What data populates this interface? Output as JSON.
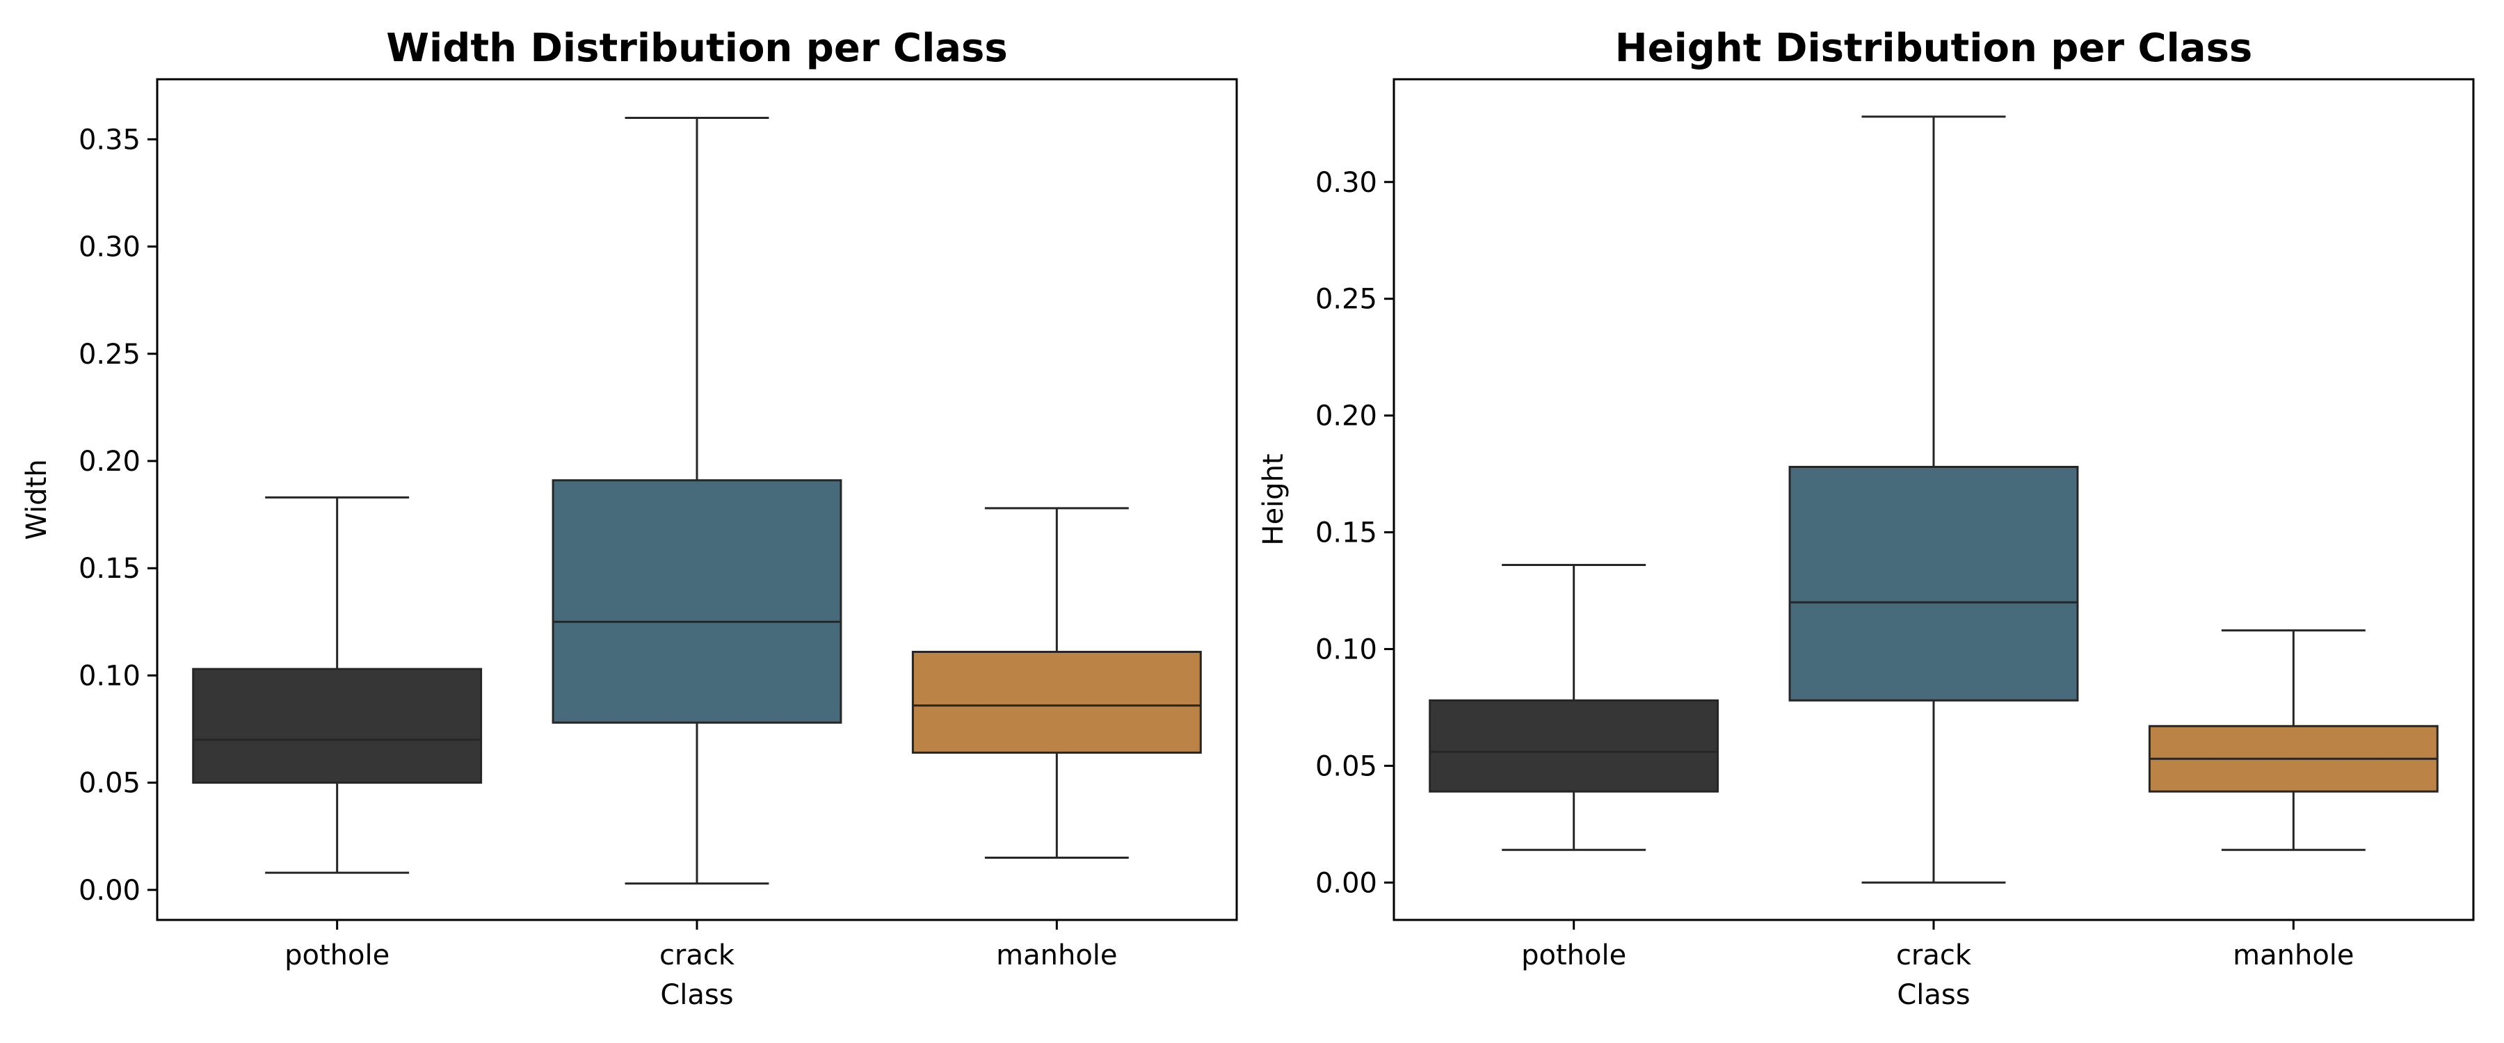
{
  "chart_data": [
    {
      "type": "box",
      "title": "Width Distribution per Class",
      "xlabel": "Class",
      "ylabel": "Width",
      "ylim": [
        -0.014,
        0.378
      ],
      "yticks": [
        "0.00",
        "0.05",
        "0.10",
        "0.15",
        "0.20",
        "0.25",
        "0.30",
        "0.35"
      ],
      "categories": [
        "pothole",
        "crack",
        "manhole"
      ],
      "colors": [
        "#363636",
        "#486b7c",
        "#bb8446"
      ],
      "boxes": [
        {
          "whisker_low": 0.008,
          "q1": 0.05,
          "median": 0.07,
          "q3": 0.103,
          "whisker_high": 0.183
        },
        {
          "whisker_low": 0.003,
          "q1": 0.078,
          "median": 0.125,
          "q3": 0.191,
          "whisker_high": 0.36
        },
        {
          "whisker_low": 0.015,
          "q1": 0.064,
          "median": 0.086,
          "q3": 0.111,
          "whisker_high": 0.178
        }
      ]
    },
    {
      "type": "box",
      "title": "Height Distribution per Class",
      "xlabel": "Class",
      "ylabel": "Height",
      "ylim": [
        -0.016,
        0.344
      ],
      "yticks": [
        "0.00",
        "0.05",
        "0.10",
        "0.15",
        "0.20",
        "0.25",
        "0.30"
      ],
      "categories": [
        "pothole",
        "crack",
        "manhole"
      ],
      "colors": [
        "#363636",
        "#486b7c",
        "#bb8446"
      ],
      "boxes": [
        {
          "whisker_low": 0.014,
          "q1": 0.039,
          "median": 0.056,
          "q3": 0.078,
          "whisker_high": 0.136
        },
        {
          "whisker_low": 0.0,
          "q1": 0.078,
          "median": 0.12,
          "q3": 0.178,
          "whisker_high": 0.328
        },
        {
          "whisker_low": 0.014,
          "q1": 0.039,
          "median": 0.053,
          "q3": 0.067,
          "whisker_high": 0.108
        }
      ]
    }
  ]
}
